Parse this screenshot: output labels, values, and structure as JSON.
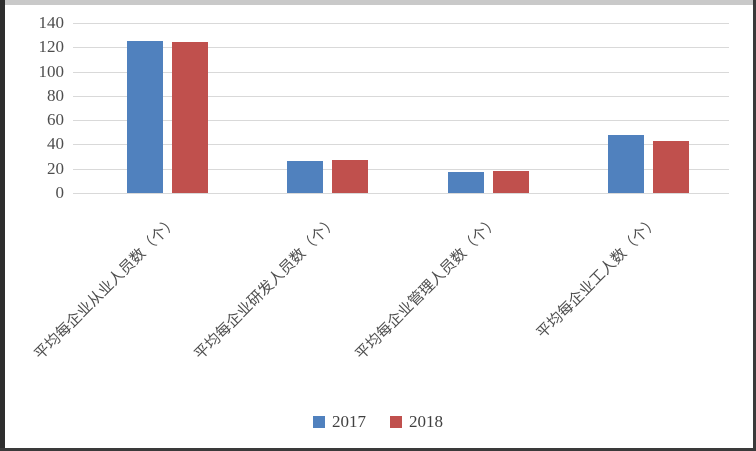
{
  "chart_data": {
    "type": "bar",
    "title": "",
    "xlabel": "",
    "ylabel": "",
    "categories": [
      "平均每企业从业人员数（个）",
      "平均每企业研发人员数（个）",
      "平均每企业管理人员数（个）",
      "平均每企业工人数（个）"
    ],
    "series": [
      {
        "name": "2017",
        "color": "#5081BE",
        "values": [
          125,
          26,
          17.5,
          48
        ]
      },
      {
        "name": "2018",
        "color": "#C0504D",
        "values": [
          124,
          27,
          18,
          42.5
        ]
      }
    ],
    "ylim": [
      0,
      140
    ],
    "yticks": [
      0,
      20,
      40,
      60,
      80,
      100,
      120,
      140
    ],
    "grid": true,
    "legend_position": "bottom",
    "category_label_rotation_deg": -45
  },
  "colors": {
    "gridline": "#d9d9d9",
    "axis_text": "#4d4d4d",
    "background": "#ffffff",
    "frame_dark": "#2e2e2e",
    "frame_light": "#c9c9c9"
  }
}
